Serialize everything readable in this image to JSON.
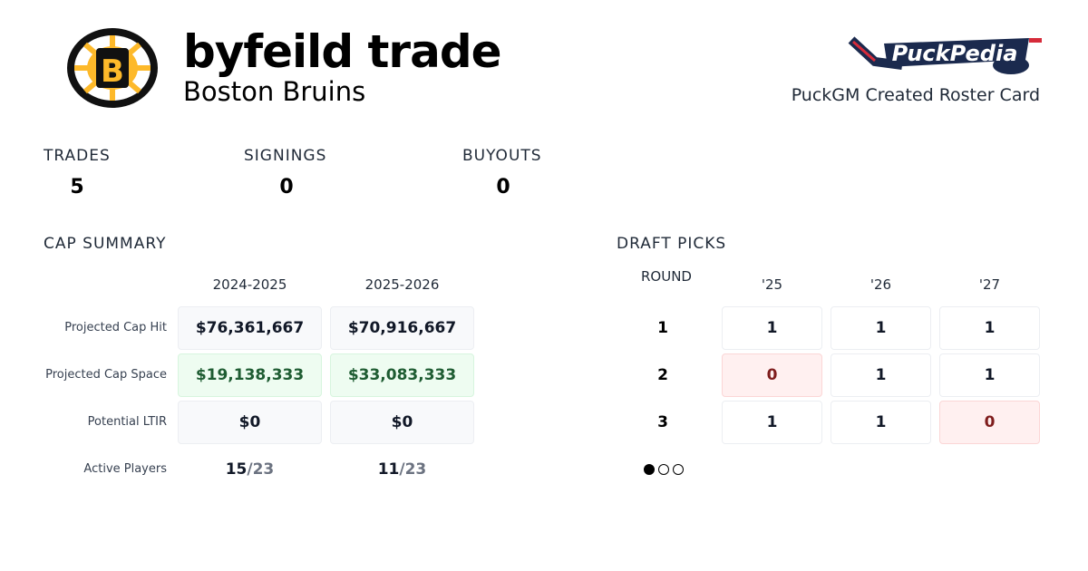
{
  "header": {
    "title": "byfeild trade",
    "team": "Boston Bruins",
    "team_logo": "bruins-logo",
    "brand_logo": "PuckPedia",
    "credit": "PuckGM Created Roster Card"
  },
  "stats": [
    {
      "label": "TRADES",
      "value": "5"
    },
    {
      "label": "SIGNINGS",
      "value": "0"
    },
    {
      "label": "BUYOUTS",
      "value": "0"
    }
  ],
  "cap_summary": {
    "title": "CAP SUMMARY",
    "seasons": [
      "2024-2025",
      "2025-2026"
    ],
    "rows": [
      {
        "label": "Projected Cap Hit",
        "values": [
          "$76,361,667",
          "$70,916,667"
        ]
      },
      {
        "label": "Projected Cap Space",
        "values": [
          "$19,138,333",
          "$33,083,333"
        ]
      },
      {
        "label": "Potential LTIR",
        "values": [
          "$0",
          "$0"
        ]
      }
    ],
    "active_players": {
      "label": "Active Players",
      "values": [
        {
          "count": "15",
          "max": "/23"
        },
        {
          "count": "11",
          "max": "/23"
        }
      ]
    }
  },
  "draft_picks": {
    "title": "DRAFT PICKS",
    "round_label": "ROUND",
    "years": [
      "'25",
      "'26",
      "'27"
    ],
    "rounds": [
      {
        "round": "1",
        "picks": [
          "1",
          "1",
          "1"
        ]
      },
      {
        "round": "2",
        "picks": [
          "0",
          "1",
          "1"
        ]
      },
      {
        "round": "3",
        "picks": [
          "1",
          "1",
          "0"
        ]
      }
    ],
    "pagination": {
      "pages": 3,
      "current": 1
    }
  },
  "colors": {
    "green_bg": "#eefcf1",
    "red_bg": "#fff0f0",
    "gold": "#FDB92A"
  }
}
